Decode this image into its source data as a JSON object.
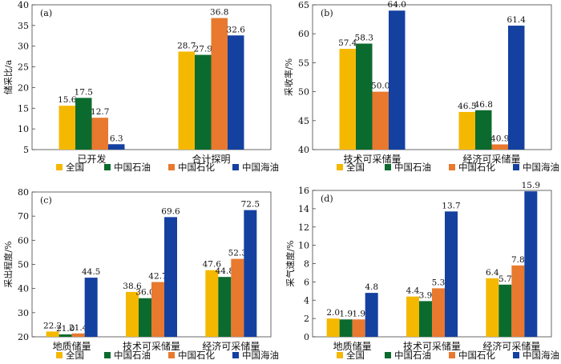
{
  "chart_data": [
    {
      "panel": "(a)",
      "type": "bar",
      "ylabel": "储采比/a",
      "ylim": [
        5,
        40
      ],
      "ytick_step": 5,
      "categories": [
        "已开发",
        "合计探明"
      ],
      "series": [
        {
          "name": "全国",
          "color": "#F5B800",
          "values": [
            15.6,
            28.7
          ],
          "labels": [
            "15.6",
            "28.7"
          ]
        },
        {
          "name": "中国石油",
          "color": "#0B6B2E",
          "values": [
            17.5,
            27.9
          ],
          "labels": [
            "17.5",
            "27.9"
          ]
        },
        {
          "name": "中国石化",
          "color": "#E8792E",
          "values": [
            12.7,
            36.8
          ],
          "labels": [
            "12.7",
            "36.8"
          ]
        },
        {
          "name": "中国海油",
          "color": "#1440A0",
          "values": [
            6.3,
            32.6
          ],
          "labels": [
            "6.3",
            "32.6"
          ]
        }
      ]
    },
    {
      "panel": "(b)",
      "type": "bar",
      "ylabel": "采收率/%",
      "ylim": [
        40,
        65
      ],
      "ytick_step": 5,
      "categories": [
        "技术可采储量",
        "经济可采储量"
      ],
      "series": [
        {
          "name": "全国",
          "color": "#F5B800",
          "values": [
            57.4,
            46.5
          ],
          "labels": [
            "57.4",
            "46.5"
          ]
        },
        {
          "name": "中国石油",
          "color": "#0B6B2E",
          "values": [
            58.3,
            46.8
          ],
          "labels": [
            "58.3",
            "46.8"
          ]
        },
        {
          "name": "中国石化",
          "color": "#E8792E",
          "values": [
            50.0,
            40.9
          ],
          "labels": [
            "50.0",
            "40.9"
          ]
        },
        {
          "name": "中国海油",
          "color": "#1440A0",
          "values": [
            64.0,
            61.4
          ],
          "labels": [
            "64.0",
            "61.4"
          ]
        }
      ]
    },
    {
      "panel": "(c)",
      "type": "bar",
      "ylabel": "采出程度/%",
      "ylim": [
        20,
        80
      ],
      "ytick_step": 10,
      "categories": [
        "地质储量",
        "技术可采储量",
        "经济可采储量"
      ],
      "series": [
        {
          "name": "全国",
          "color": "#F5B800",
          "values": [
            22.2,
            38.6,
            47.6
          ],
          "labels": [
            "22.2",
            "38.6",
            "47.6"
          ]
        },
        {
          "name": "中国石油",
          "color": "#0B6B2E",
          "values": [
            21.0,
            36.0,
            44.8
          ],
          "labels": [
            "21.0",
            "36.0",
            "44.8"
          ]
        },
        {
          "name": "中国石化",
          "color": "#E8792E",
          "values": [
            21.4,
            42.7,
            52.3
          ],
          "labels": [
            "21.4",
            "42.7",
            "52.3"
          ]
        },
        {
          "name": "中国海油",
          "color": "#1440A0",
          "values": [
            44.5,
            69.6,
            72.5
          ],
          "labels": [
            "44.5",
            "69.6",
            "72.5"
          ]
        }
      ]
    },
    {
      "panel": "(d)",
      "type": "bar",
      "ylabel": "采气速度/%",
      "ylim": [
        0,
        16
      ],
      "ytick_step": 2,
      "categories": [
        "地质储量",
        "技术可采储量",
        "经济可采储量"
      ],
      "series": [
        {
          "name": "全国",
          "color": "#F5B800",
          "values": [
            2.0,
            4.4,
            6.4
          ],
          "labels": [
            "2.0",
            "4.4",
            "6.4"
          ]
        },
        {
          "name": "中国石油",
          "color": "#0B6B2E",
          "values": [
            1.9,
            3.9,
            5.7
          ],
          "labels": [
            "1.9",
            "3.9",
            "5.7"
          ]
        },
        {
          "name": "中国石化",
          "color": "#E8792E",
          "values": [
            1.9,
            5.3,
            7.8
          ],
          "labels": [
            "1.9",
            "5.3",
            "7.8"
          ]
        },
        {
          "name": "中国海油",
          "color": "#1440A0",
          "values": [
            4.8,
            13.7,
            15.9
          ],
          "labels": [
            "4.8",
            "13.7",
            "15.9"
          ]
        }
      ]
    }
  ]
}
